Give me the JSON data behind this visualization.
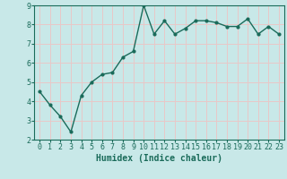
{
  "x": [
    0,
    1,
    2,
    3,
    4,
    5,
    6,
    7,
    8,
    9,
    10,
    11,
    12,
    13,
    14,
    15,
    16,
    17,
    18,
    19,
    20,
    21,
    22,
    23
  ],
  "y": [
    4.5,
    3.8,
    3.2,
    2.4,
    4.3,
    5.0,
    5.4,
    5.5,
    6.3,
    6.6,
    9.0,
    7.5,
    8.2,
    7.5,
    7.8,
    8.2,
    8.2,
    8.1,
    7.9,
    7.9,
    8.3,
    7.5,
    7.9,
    7.5
  ],
  "xlabel": "Humidex (Indice chaleur)",
  "ylim": [
    2,
    9
  ],
  "xlim_min": -0.5,
  "xlim_max": 23.5,
  "yticks": [
    2,
    3,
    4,
    5,
    6,
    7,
    8,
    9
  ],
  "xticks": [
    0,
    1,
    2,
    3,
    4,
    5,
    6,
    7,
    8,
    9,
    10,
    11,
    12,
    13,
    14,
    15,
    16,
    17,
    18,
    19,
    20,
    21,
    22,
    23
  ],
  "line_color": "#1a6b5a",
  "marker_color": "#1a6b5a",
  "bg_color": "#c8e8e8",
  "grid_color": "#e8c8c8",
  "axes_bg": "#c8e8e8",
  "tick_label_color": "#1a6b5a",
  "xlabel_color": "#1a6b5a",
  "xlabel_fontsize": 7,
  "tick_fontsize": 6,
  "linewidth": 1.0,
  "markersize": 2.0
}
